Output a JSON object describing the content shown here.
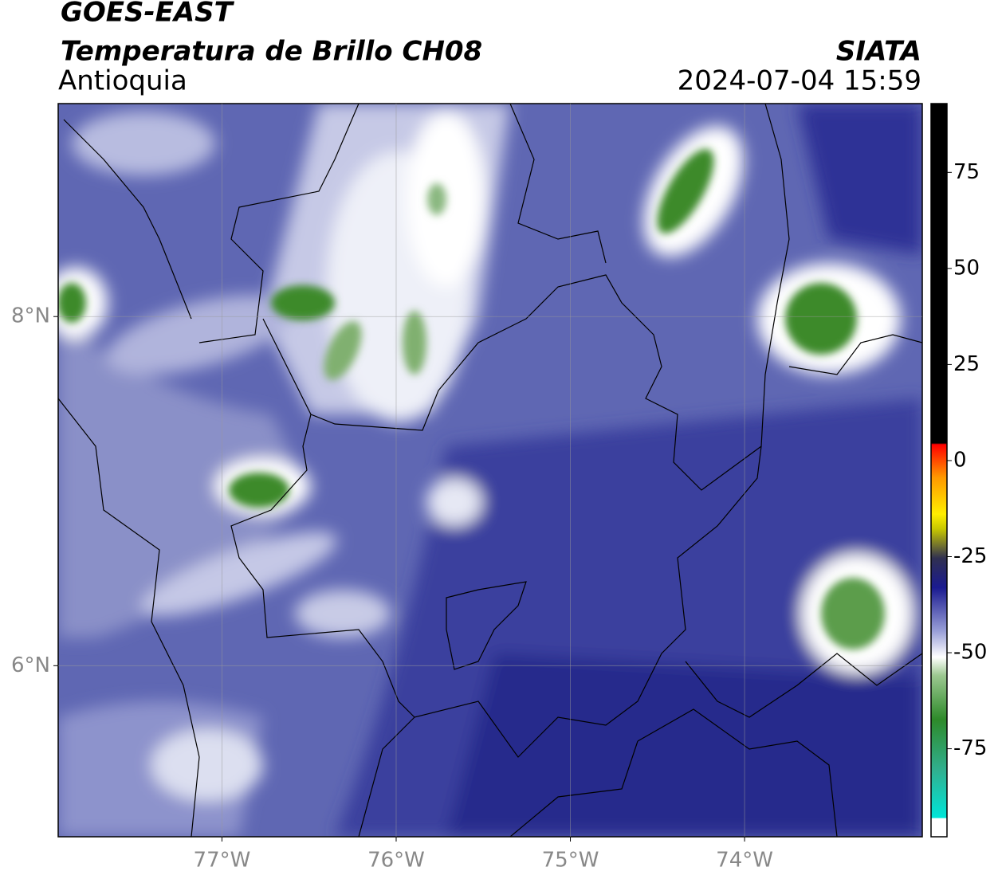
{
  "header": {
    "title": "GOES-EAST",
    "subtitle": "Temperatura de Brillo CH08",
    "region": "Antioquia",
    "source": "SIATA",
    "timestamp": "2024-07-04 15:59"
  },
  "map": {
    "xlim": [
      -77.94,
      -72.98
    ],
    "ylim": [
      5.02,
      9.22
    ],
    "xticks": [
      {
        "value": -77,
        "label": "77°W"
      },
      {
        "value": -76,
        "label": "76°W"
      },
      {
        "value": -75,
        "label": "75°W"
      },
      {
        "value": -74,
        "label": "74°W"
      }
    ],
    "yticks": [
      {
        "value": 6,
        "label": "6°N"
      },
      {
        "value": 8,
        "label": "8°N"
      }
    ],
    "grid": true
  },
  "colorbar": {
    "lim": [
      -97.9,
      92.9
    ],
    "ticks": [
      75,
      50,
      25,
      0,
      -25,
      -50,
      -75
    ]
  }
}
